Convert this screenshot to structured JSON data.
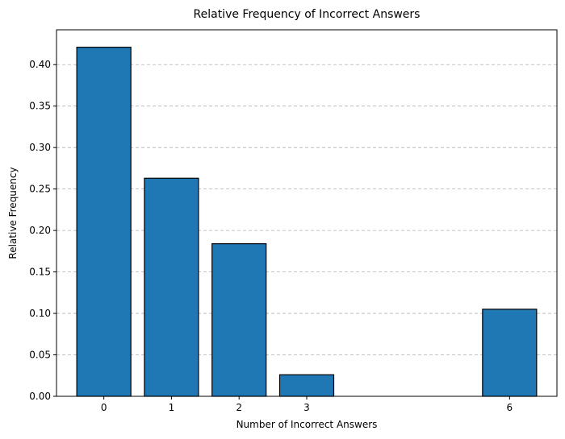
{
  "chart_data": {
    "type": "bar",
    "title": "Relative Frequency of Incorrect Answers",
    "xlabel": "Number of Incorrect Answers",
    "ylabel": "Relative Frequency",
    "x": [
      0,
      1,
      2,
      3,
      6
    ],
    "values": [
      0.421,
      0.263,
      0.184,
      0.026,
      0.105
    ],
    "x_ticks": [
      0,
      1,
      2,
      3,
      6
    ],
    "x_tick_labels": [
      "0",
      "1",
      "2",
      "3",
      "6"
    ],
    "y_ticks": [
      0.0,
      0.05,
      0.1,
      0.15,
      0.2,
      0.25,
      0.3,
      0.35,
      0.4
    ],
    "y_tick_labels": [
      "0.00",
      "0.05",
      "0.10",
      "0.15",
      "0.20",
      "0.25",
      "0.30",
      "0.35",
      "0.40"
    ],
    "xlim": [
      -0.7,
      6.7
    ],
    "ylim": [
      0,
      0.442
    ],
    "bar_width": 0.8,
    "grid": "y-dashed",
    "colors": {
      "bar_fill": "#1f77b4",
      "bar_edge": "#000000",
      "grid": "#b0b0b0"
    }
  }
}
